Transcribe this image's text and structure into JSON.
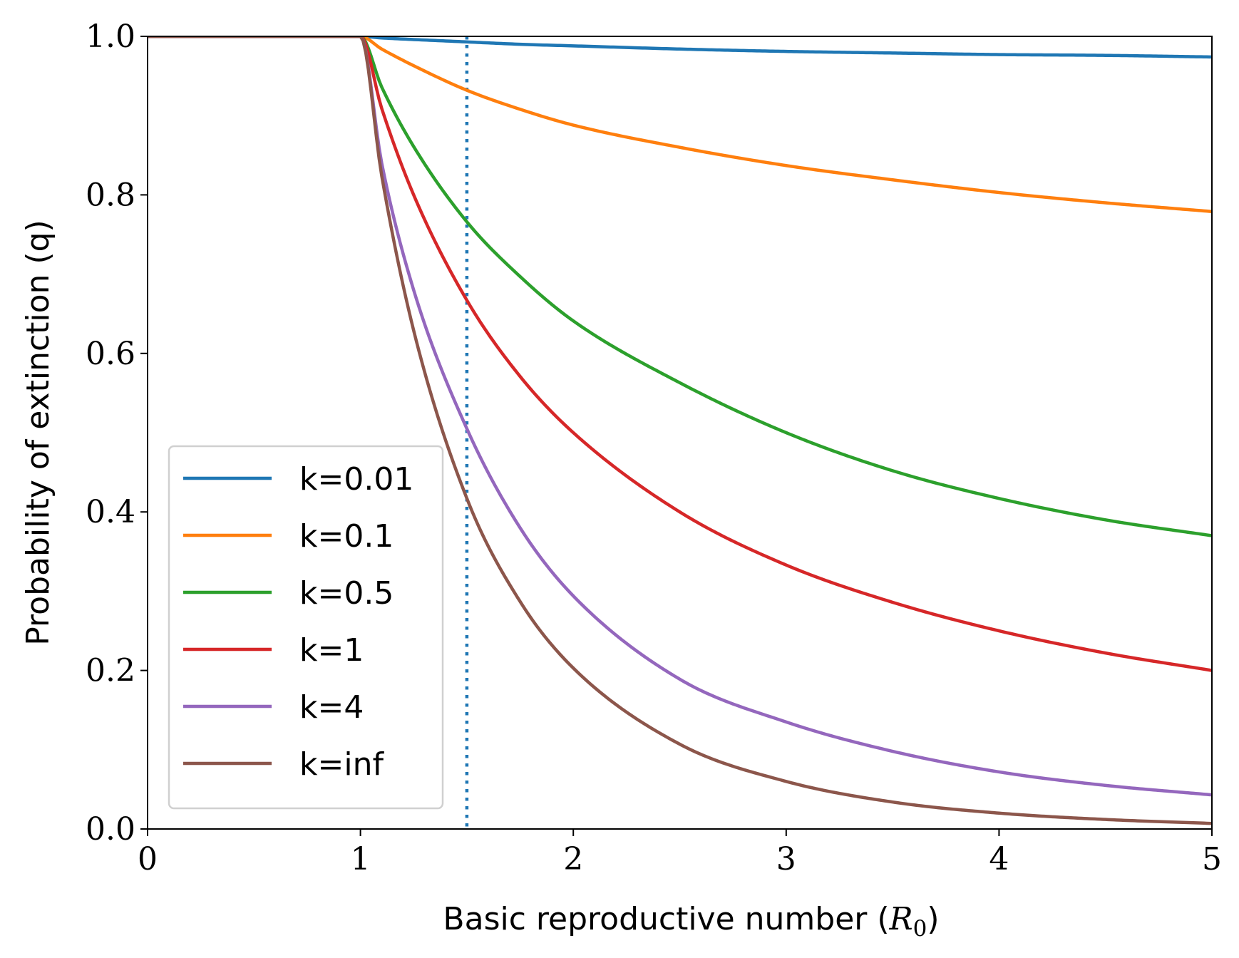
{
  "chart_data": {
    "type": "line",
    "title": "",
    "xlabel": "Basic reproductive number",
    "xlabel_symbol": "R",
    "xlabel_subscript": "0",
    "ylabel": "Probability of extinction (q)",
    "xlim": [
      0,
      5
    ],
    "ylim": [
      0,
      1
    ],
    "xticks": [
      0,
      1,
      2,
      3,
      4,
      5
    ],
    "xtick_labels": [
      "0",
      "1",
      "2",
      "3",
      "4",
      "5"
    ],
    "yticks": [
      0,
      0.2,
      0.4,
      0.6,
      0.8,
      1.0
    ],
    "ytick_labels": [
      "0.0",
      "0.2",
      "0.4",
      "0.6",
      "0.8",
      "1.0"
    ],
    "grid": false,
    "legend_position": "lower-left",
    "reference_line": {
      "orientation": "vertical",
      "x": 1.5,
      "style": "dotted",
      "color": "#1f77b4"
    },
    "x": [
      0,
      0.5,
      1.0,
      1.1,
      1.25,
      1.5,
      1.75,
      2.0,
      2.5,
      3.0,
      3.5,
      4.0,
      4.5,
      5.0
    ],
    "series": [
      {
        "name": "k=0.01",
        "color": "#1f77b4",
        "values": [
          1.0,
          1.0,
          1.0,
          0.998,
          0.996,
          0.993,
          0.99,
          0.988,
          0.984,
          0.981,
          0.979,
          0.977,
          0.976,
          0.974
        ]
      },
      {
        "name": "k=0.1",
        "color": "#ff7f0e",
        "values": [
          1.0,
          1.0,
          1.0,
          0.984,
          0.963,
          0.932,
          0.908,
          0.888,
          0.86,
          0.837,
          0.819,
          0.803,
          0.79,
          0.779
        ]
      },
      {
        "name": "k=0.5",
        "color": "#2ca02c",
        "values": [
          1.0,
          1.0,
          1.0,
          0.936,
          0.861,
          0.766,
          0.697,
          0.641,
          0.563,
          0.5,
          0.452,
          0.417,
          0.39,
          0.37
        ]
      },
      {
        "name": "k=1",
        "color": "#d62728",
        "values": [
          1.0,
          1.0,
          1.0,
          0.909,
          0.8,
          0.667,
          0.571,
          0.5,
          0.4,
          0.333,
          0.286,
          0.25,
          0.222,
          0.2
        ]
      },
      {
        "name": "k=4",
        "color": "#9467bd",
        "values": [
          1.0,
          1.0,
          1.0,
          0.84,
          0.68,
          0.505,
          0.38,
          0.294,
          0.189,
          0.135,
          0.098,
          0.072,
          0.055,
          0.043
        ]
      },
      {
        "name": "k=inf",
        "color": "#8c564b",
        "values": [
          1.0,
          1.0,
          1.0,
          0.824,
          0.629,
          0.417,
          0.287,
          0.203,
          0.107,
          0.06,
          0.034,
          0.02,
          0.012,
          0.007
        ]
      }
    ]
  }
}
